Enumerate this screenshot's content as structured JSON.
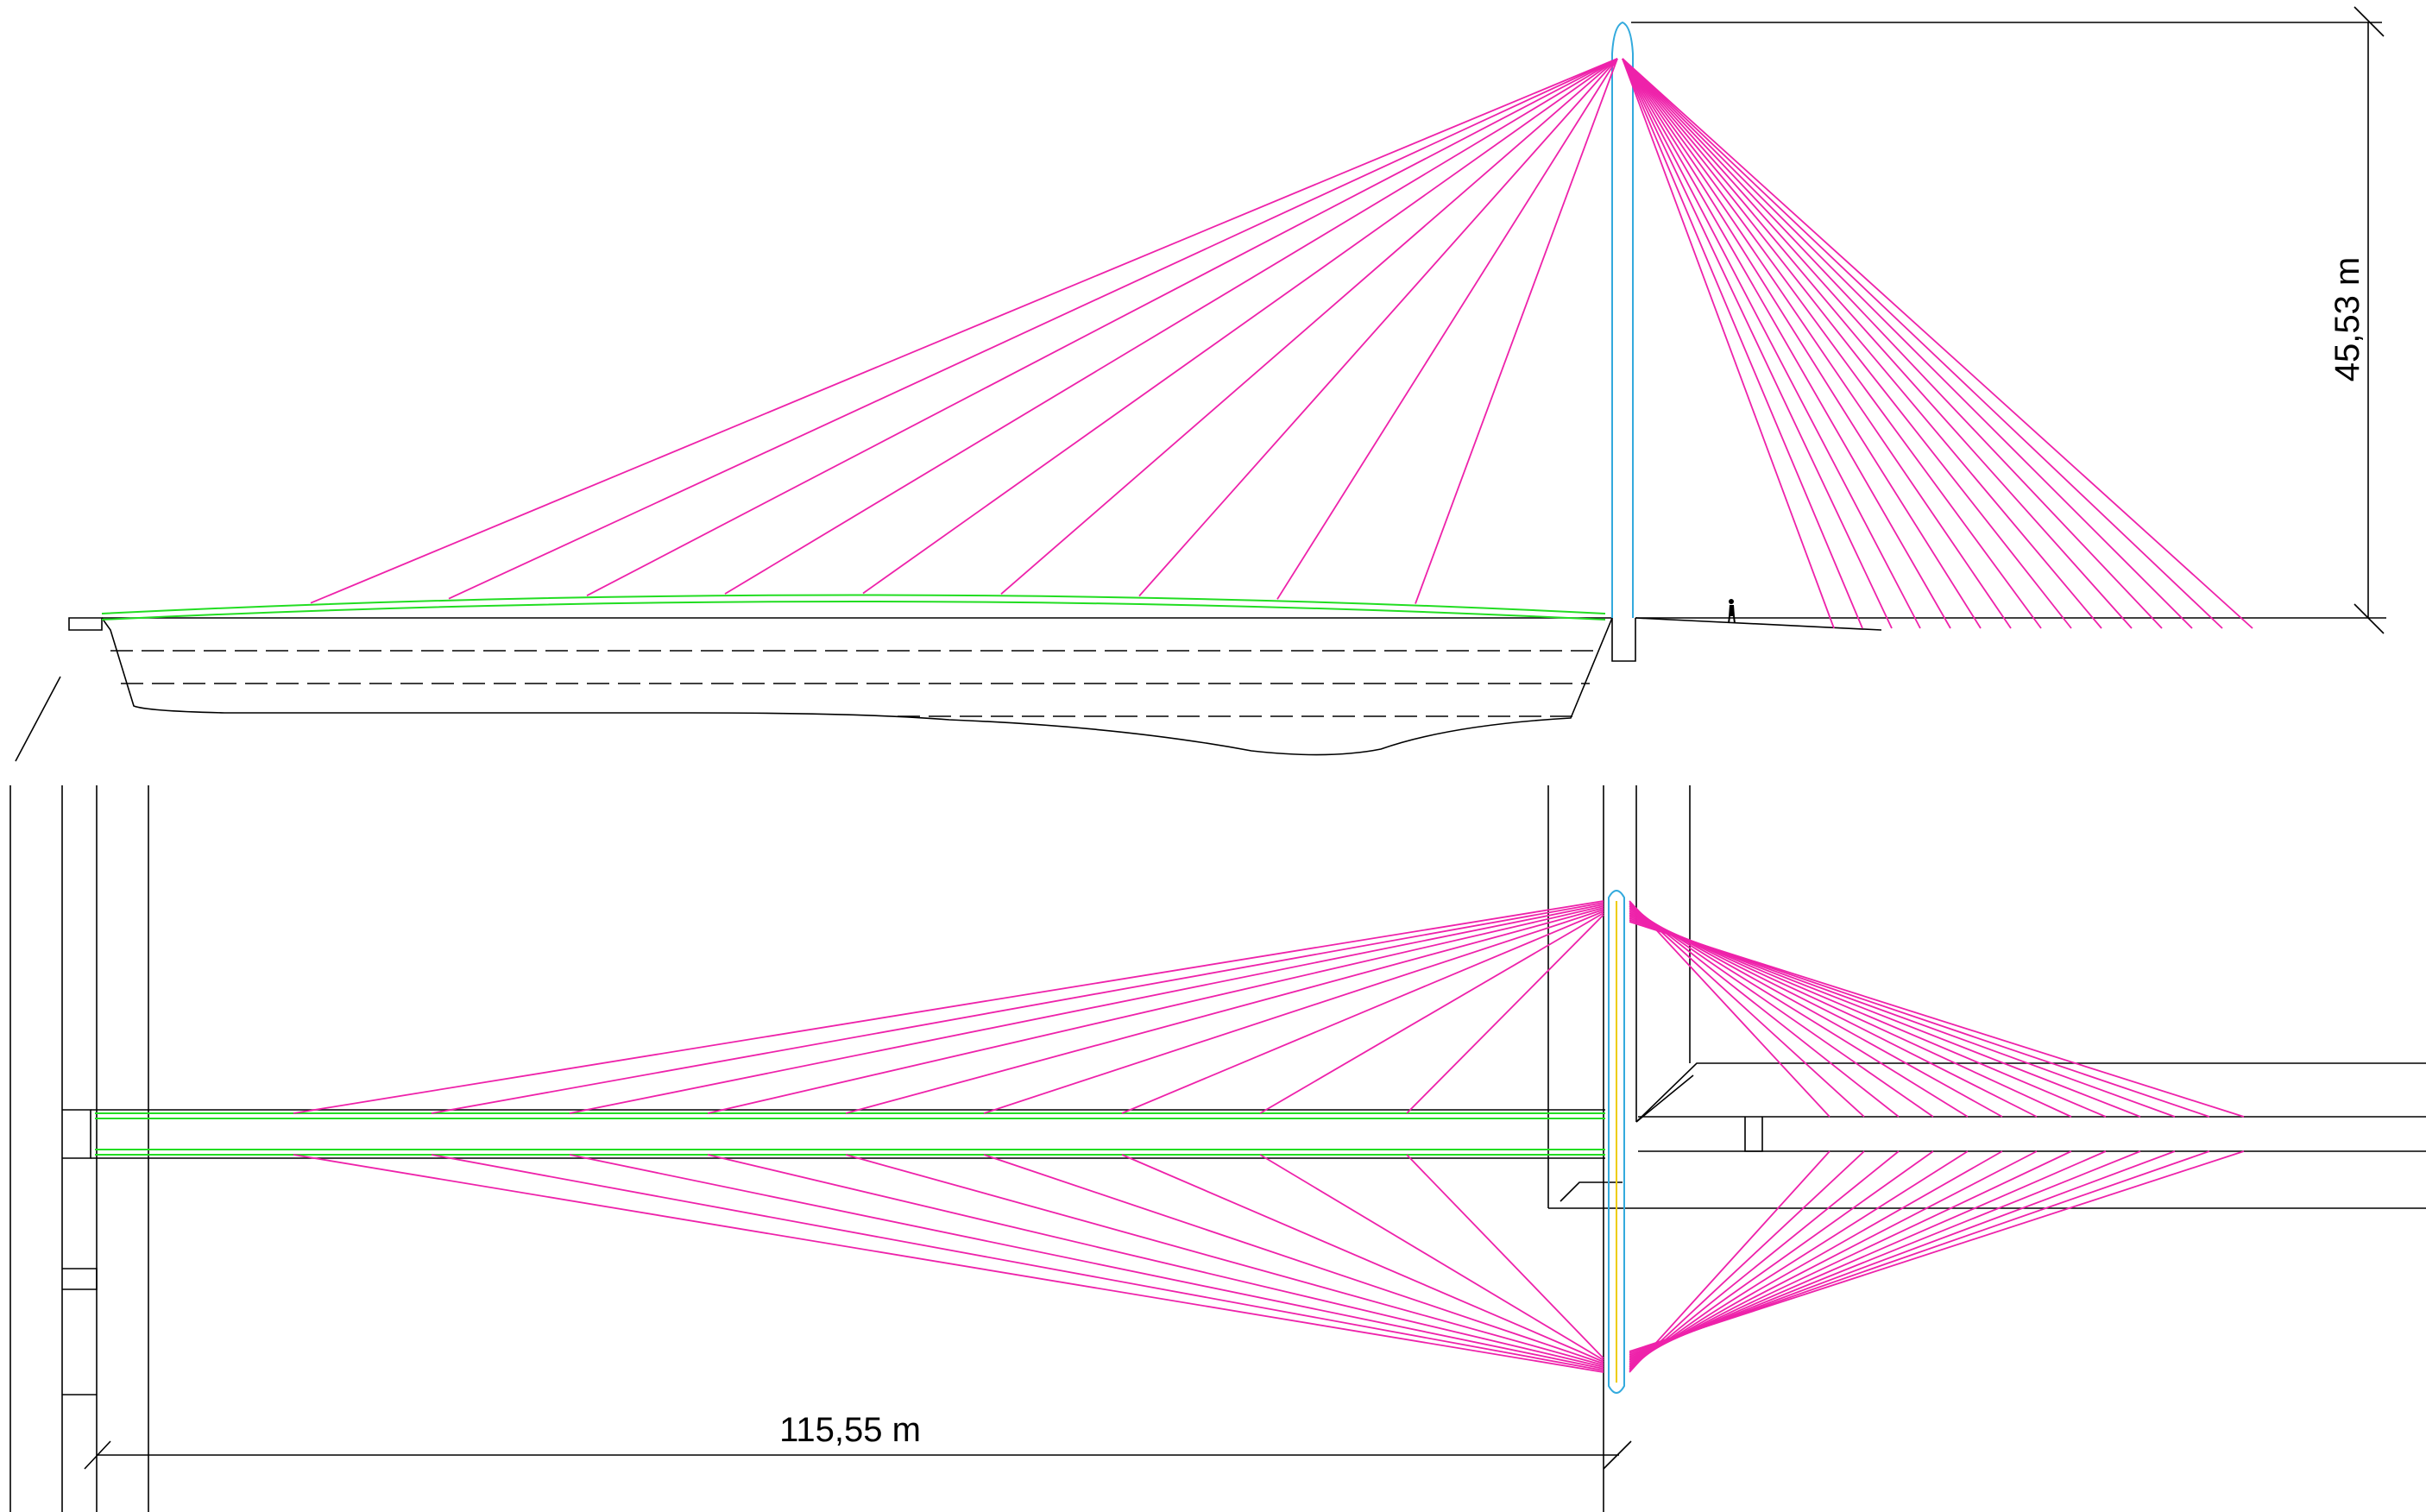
{
  "dimensions": {
    "height_label": "45,53 m",
    "span_label": "115,55 m"
  },
  "colors": {
    "cable": "#ee22aa",
    "deck": "#22dd22",
    "pylon": "#33aadd",
    "axis": "#eecc00",
    "linework": "#000000"
  }
}
